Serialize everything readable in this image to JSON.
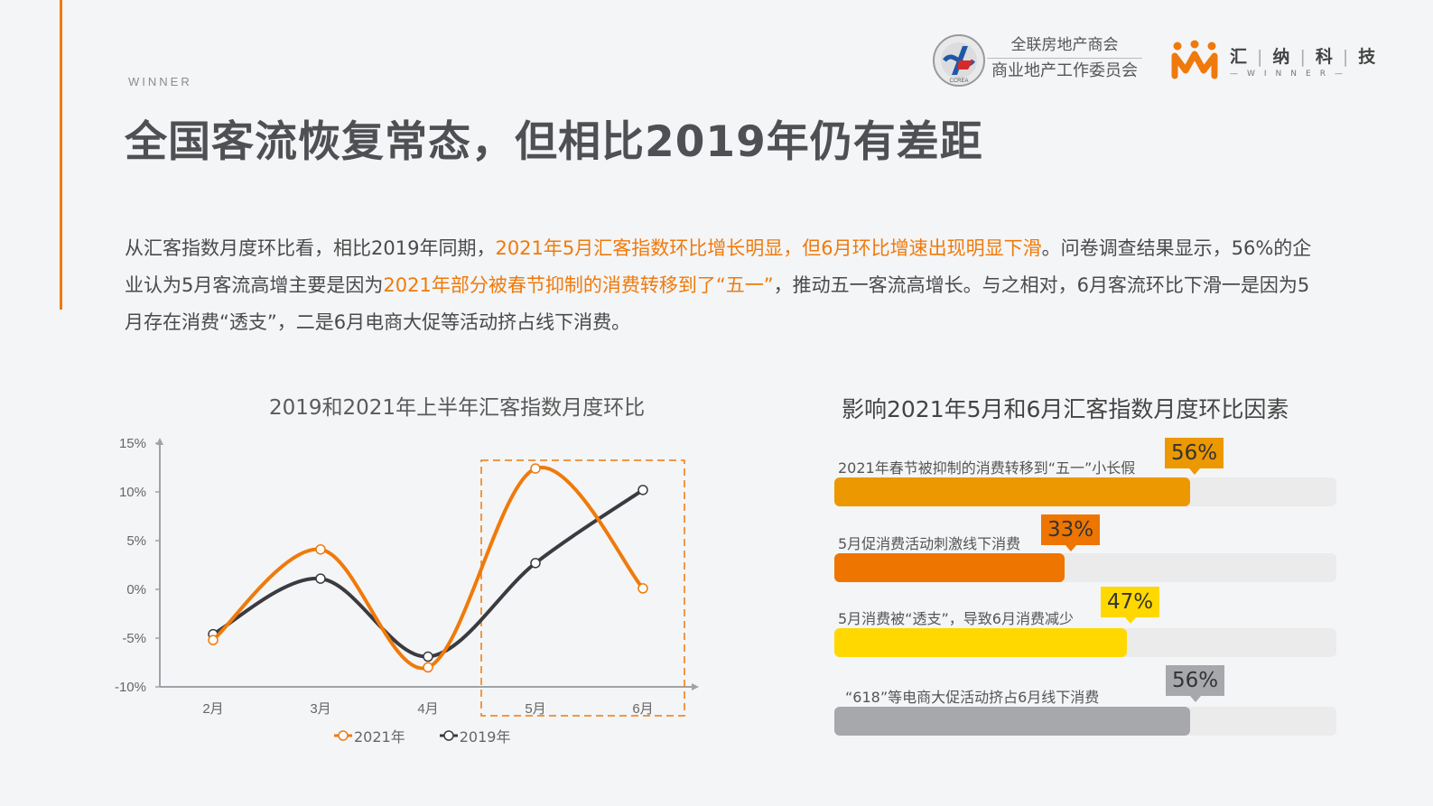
{
  "header": {
    "brand_small": "WINNER",
    "title": "全国客流恢复常态，但相比2019年仍有差距",
    "logos": {
      "ccrea": {
        "icon": "ccrea-emblem-icon",
        "line1": "全联房地产商会",
        "line2": "商业地产工作委员会",
        "ring_text": "CCREA"
      },
      "winner": {
        "icon": "winner-crown-icon",
        "cn": [
          "汇",
          "纳",
          "科",
          "技"
        ],
        "en": "—WINNER—",
        "color": "#ef7a0b"
      }
    }
  },
  "paragraph": {
    "parts": [
      {
        "text": "从汇客指数月度环比看，相比2019年同期，",
        "highlight": false
      },
      {
        "text": "2021年5月汇客指数环比增长明显，但6月环比增速出现明显下滑",
        "highlight": true
      },
      {
        "text": "。问卷调查结果显示，56%的企业认为5月客流高增主要是因为",
        "highlight": false
      },
      {
        "text": "2021年部分被春节抑制的消费转移到了“五一”",
        "highlight": true
      },
      {
        "text": "，推动五一客流高增长。与之相对，6月客流环比下滑一是因为5月存在消费“透支”，二是6月电商大促等活动挤占线下消费。",
        "highlight": false
      }
    ]
  },
  "colors": {
    "accent": "#ef7a0b",
    "series_2021": "#ef7a0b",
    "series_2019": "#3a3b40",
    "bar1": "#ec9800",
    "bar2": "#ee7500",
    "bar3": "#ffd800",
    "bar4": "#a7a8ac",
    "track": "#ebebeb",
    "background": "#f4f5f7"
  },
  "chart_data": [
    {
      "type": "line",
      "title": "2019和2021年上半年汇客指数月度环比",
      "categories": [
        "2月",
        "3月",
        "4月",
        "5月",
        "6月"
      ],
      "series": [
        {
          "name": "2021年",
          "values": [
            -5.2,
            4.1,
            -8.0,
            12.4,
            0.1
          ],
          "color": "#ef7a0b"
        },
        {
          "name": "2019年",
          "values": [
            -4.6,
            1.1,
            -6.9,
            2.7,
            10.2
          ],
          "color": "#3a3b40"
        }
      ],
      "xlabel": "",
      "ylabel": "",
      "yticks": [
        "15%",
        "10%",
        "5%",
        "0%",
        "-5%",
        "-10%"
      ],
      "ylim": [
        -10,
        15
      ],
      "grid": false,
      "legend_position": "bottom",
      "annotations": [
        "dashed orange box highlighting 5月–6月"
      ]
    },
    {
      "type": "bar",
      "orientation": "horizontal",
      "title": "影响2021年5月和6月汇客指数月度环比因素",
      "categories": [
        "2021年春节被抑制的消费转移到“五一”小长假",
        "5月促消费活动刺激线下消费",
        "5月消费被“透支”，导致6月消费减少",
        "“618”等电商大促活动挤占6月线下消费"
      ],
      "values": [
        56,
        33,
        47,
        56
      ],
      "value_labels": [
        "56%",
        "33%",
        "47%",
        "56%"
      ],
      "colors": [
        "#ec9800",
        "#ee7500",
        "#ffd800",
        "#a7a8ac"
      ],
      "xlim": [
        0,
        79
      ]
    }
  ],
  "line_chart": {
    "title": "2019和2021年上半年汇客指数月度环比",
    "yticks": [
      "15%",
      "10%",
      "5%",
      "0%",
      "-5%",
      "-10%"
    ],
    "xticks": [
      "2月",
      "3月",
      "4月",
      "5月",
      "6月"
    ],
    "legend": [
      "2021年",
      "2019年"
    ]
  },
  "bar_chart": {
    "title": "影响2021年5月和6月汇客指数月度环比因素",
    "rows": [
      {
        "label": "2021年春节被抑制的消费转移到“五一”小长假",
        "value": "56%"
      },
      {
        "label": "5月促消费活动刺激线下消费",
        "value": "33%"
      },
      {
        "label": "5月消费被“透支”，导致6月消费减少",
        "value": "47%"
      },
      {
        "label": "“618”等电商大促活动挤占6月线下消费",
        "value": "56%"
      }
    ]
  }
}
